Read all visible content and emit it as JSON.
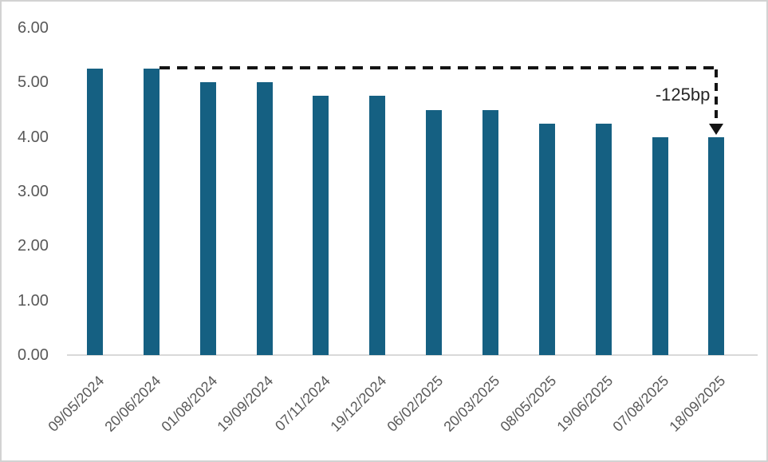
{
  "chart_data": {
    "type": "bar",
    "title": "",
    "xlabel": "",
    "ylabel": "",
    "categories": [
      "09/05/2024",
      "20/06/2024",
      "01/08/2024",
      "19/09/2024",
      "07/11/2024",
      "19/12/2024",
      "06/02/2025",
      "20/03/2025",
      "08/05/2025",
      "19/06/2025",
      "07/08/2025",
      "18/09/2025"
    ],
    "values": [
      5.25,
      5.25,
      5.0,
      5.0,
      4.75,
      4.75,
      4.5,
      4.5,
      4.25,
      4.25,
      4.0,
      4.0
    ],
    "ylim": [
      0,
      6
    ],
    "y_tick_labels": [
      "0.00",
      "1.00",
      "2.00",
      "3.00",
      "4.00",
      "5.00",
      "6.00"
    ],
    "y_tick_values": [
      0,
      1,
      2,
      3,
      4,
      5,
      6
    ],
    "grid": false,
    "legend": false,
    "bar_color": "#156082",
    "axis_line_color": "#d9d9d9",
    "tick_label_color": "#595959",
    "annotation": {
      "label": "-125bp",
      "from_category_index": 1,
      "from_value": 5.25,
      "to_category_index": 11,
      "to_value": 4.0,
      "line_color": "#141414"
    }
  }
}
